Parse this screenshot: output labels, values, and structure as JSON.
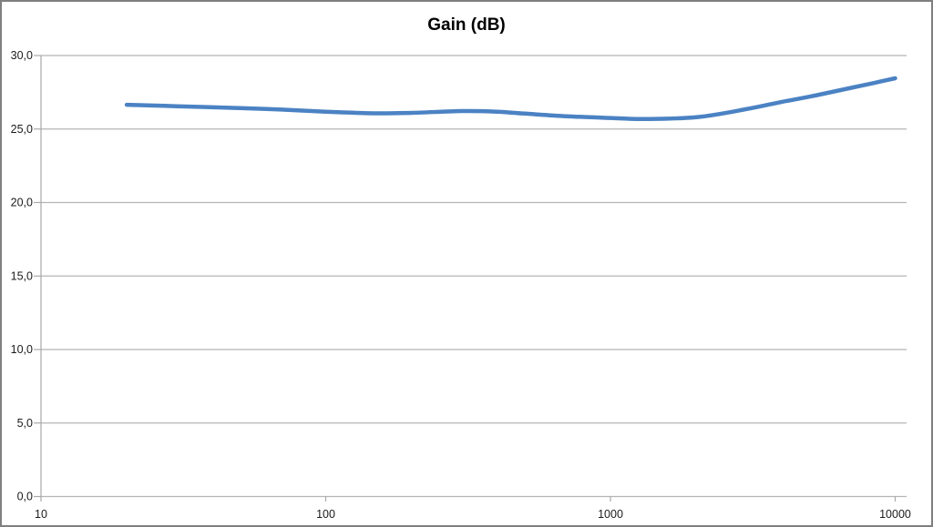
{
  "window": {
    "background": "#ffffff",
    "frame_border_color": "#7f7f7f"
  },
  "chart_data": {
    "type": "line",
    "title": "Gain (dB)",
    "xlabel": "",
    "ylabel": "",
    "x_scale": "log",
    "xlim": [
      10,
      11000
    ],
    "ylim": [
      0,
      30
    ],
    "grid": true,
    "legend": "none",
    "x_ticks": [
      {
        "value": 10,
        "label": "10"
      },
      {
        "value": 100,
        "label": "100"
      },
      {
        "value": 1000,
        "label": "1000"
      },
      {
        "value": 10000,
        "label": "10000"
      }
    ],
    "y_ticks": [
      {
        "value": 0,
        "label": "0,0"
      },
      {
        "value": 5,
        "label": "5,0"
      },
      {
        "value": 10,
        "label": "10,0"
      },
      {
        "value": 15,
        "label": "15,0"
      },
      {
        "value": 20,
        "label": "20,0"
      },
      {
        "value": 25,
        "label": "25,0"
      },
      {
        "value": 30,
        "label": "30,0"
      }
    ],
    "x": [
      20,
      30,
      50,
      70,
      100,
      150,
      200,
      300,
      400,
      500,
      700,
      1000,
      1300,
      2000,
      3000,
      4000,
      5000,
      7000,
      8500,
      10000
    ],
    "series": [
      {
        "name": "Gain (dB)",
        "color": "#4b82c3",
        "values": [
          26.65,
          26.55,
          26.42,
          26.32,
          26.18,
          26.07,
          26.1,
          26.22,
          26.18,
          26.05,
          25.87,
          25.75,
          25.68,
          25.8,
          26.35,
          26.85,
          27.2,
          27.8,
          28.15,
          28.45
        ]
      }
    ]
  },
  "colors": {
    "line": "#4b82c3",
    "gridline": "#b5b5b5",
    "axis": "#a8a8a8",
    "tick": "#a8a8a8",
    "text": "#1a1a1a",
    "frame": "#7f7f7f",
    "background": "#ffffff"
  }
}
